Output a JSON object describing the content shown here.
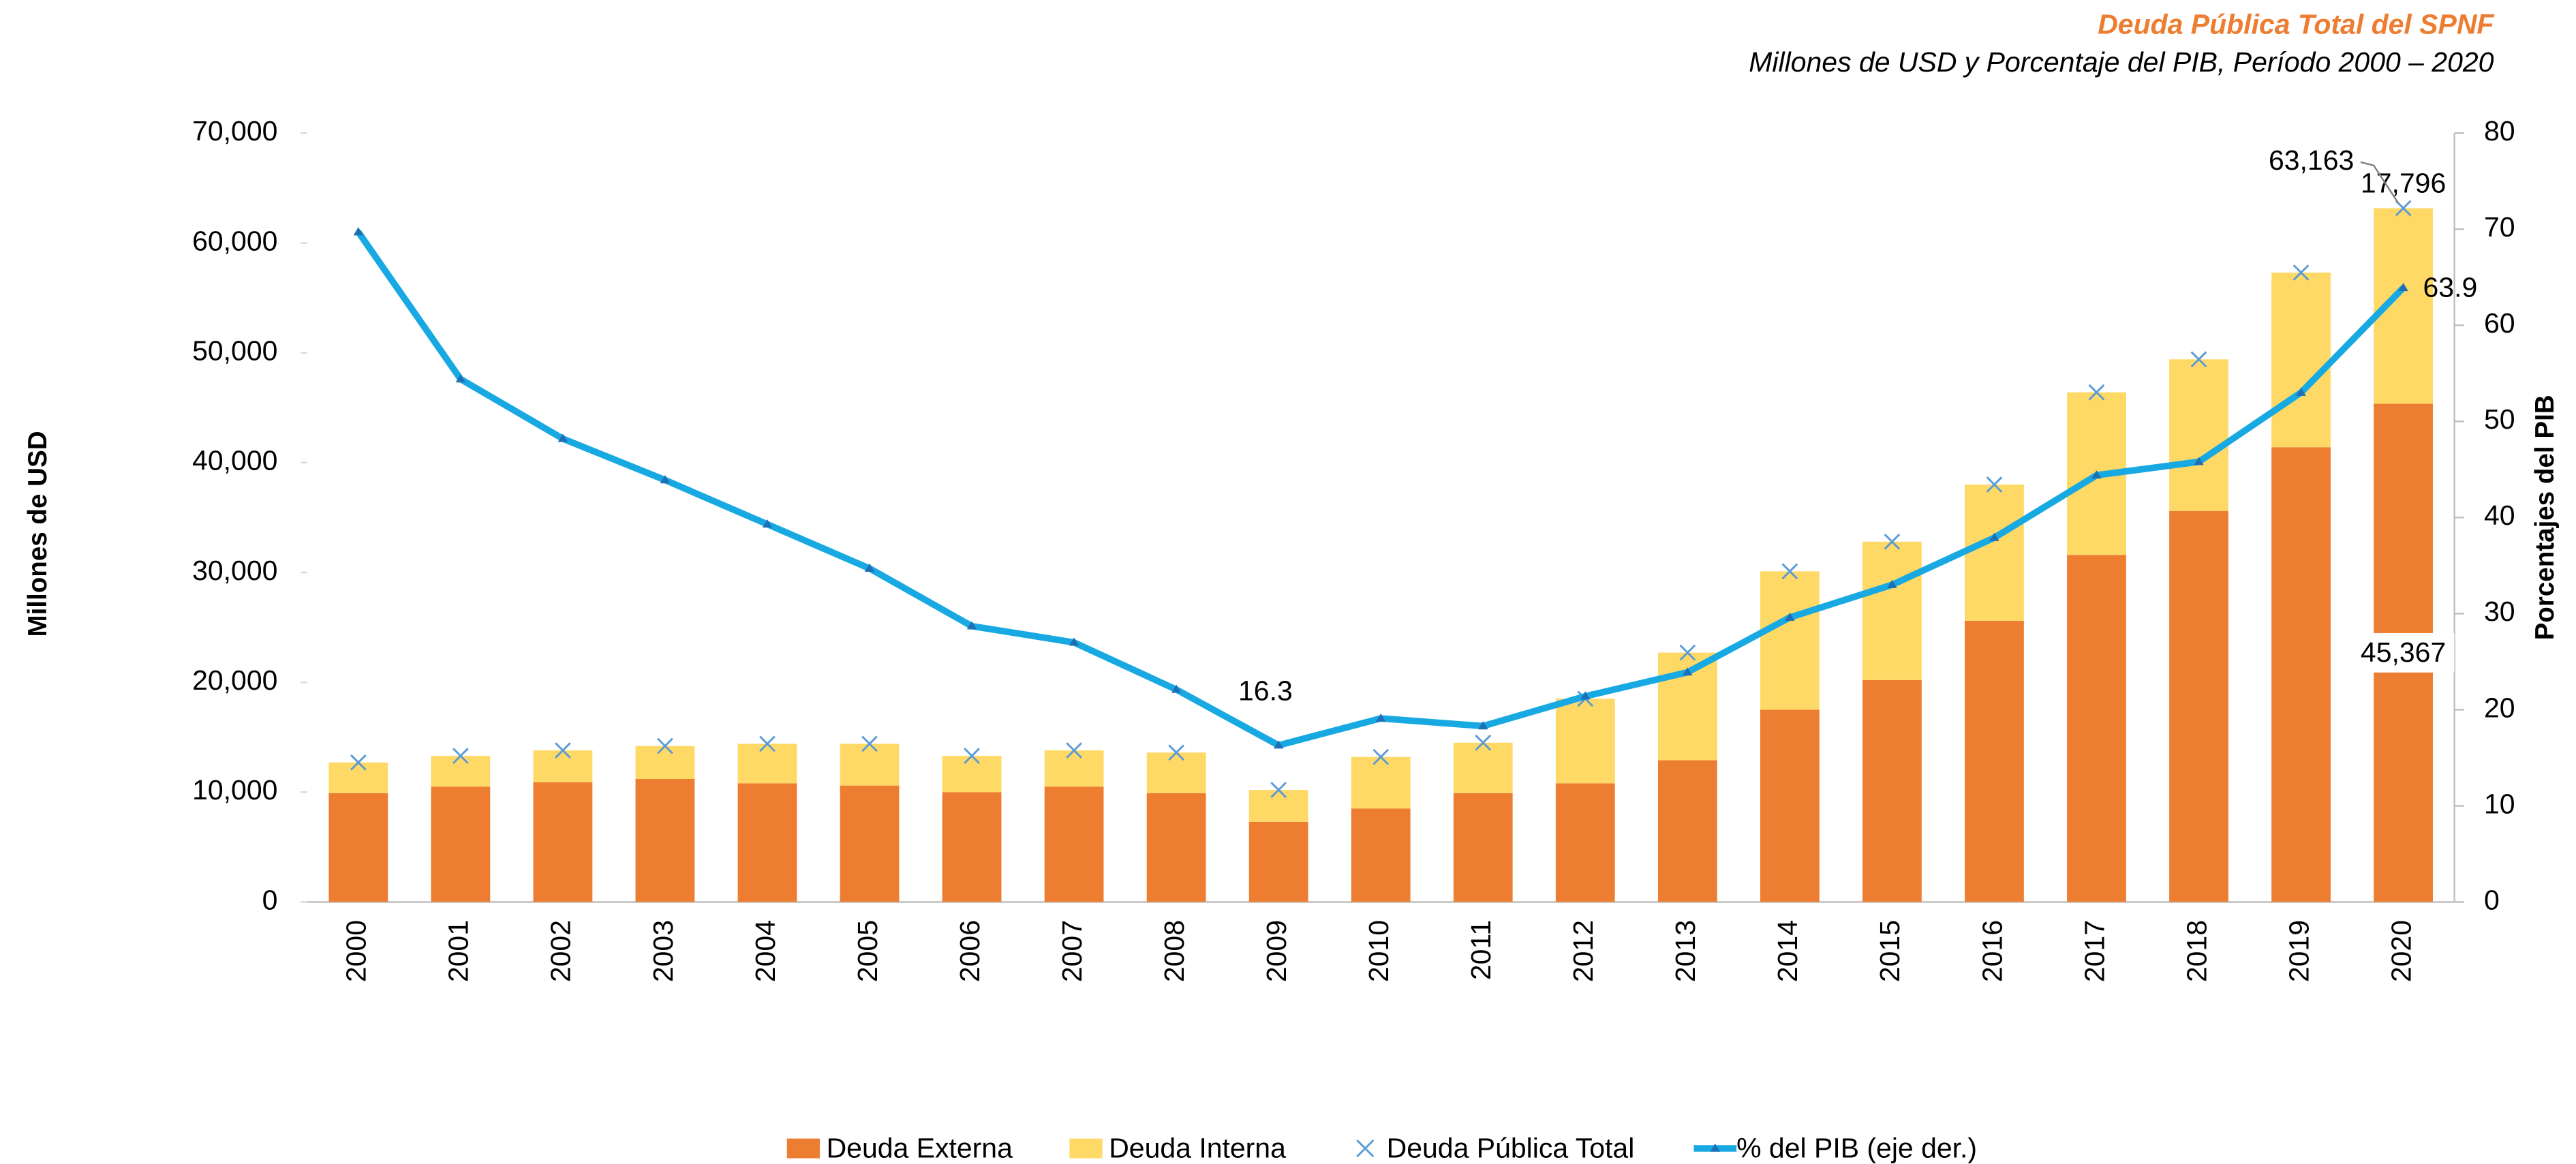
{
  "chart_data": {
    "type": "bar",
    "stacked": true,
    "title": "Deuda Pública Total del SPNF",
    "subtitle": "Millones de USD y Porcentaje del PIB, Período 2000 – 2020",
    "y_label": "Millones de USD",
    "y2_label": "Porcentajes del PIB",
    "categories": [
      "2000",
      "2001",
      "2002",
      "2003",
      "2004",
      "2005",
      "2006",
      "2007",
      "2008",
      "2009",
      "2010",
      "2011",
      "2012",
      "2013",
      "2014",
      "2015",
      "2016",
      "2017",
      "2018",
      "2019",
      "2020"
    ],
    "series": [
      {
        "name": "Deuda Externa",
        "type": "bar",
        "color": "#ed7d31",
        "values": [
          9900,
          10500,
          10900,
          11200,
          10800,
          10600,
          10000,
          10500,
          9900,
          7300,
          8500,
          9900,
          10800,
          12900,
          17500,
          20200,
          25600,
          31600,
          35600,
          41400,
          45367
        ],
        "value_labels": [
          null,
          null,
          null,
          null,
          null,
          null,
          null,
          null,
          null,
          null,
          null,
          null,
          null,
          null,
          null,
          null,
          null,
          null,
          null,
          null,
          "45,367"
        ]
      },
      {
        "name": "Deuda Interna",
        "type": "bar",
        "color": "#ffd966",
        "values": [
          2800,
          2800,
          2900,
          3000,
          3600,
          3800,
          3300,
          3300,
          3700,
          2900,
          4700,
          4600,
          7700,
          9800,
          12600,
          12600,
          12400,
          14800,
          13800,
          15900,
          17796
        ],
        "value_labels": [
          null,
          null,
          null,
          null,
          null,
          null,
          null,
          null,
          null,
          null,
          null,
          null,
          null,
          null,
          null,
          null,
          null,
          null,
          null,
          null,
          "17,796"
        ]
      },
      {
        "name": "Deuda Pública Total",
        "type": "scatter",
        "color": "#5b9bd5",
        "values": [
          12700,
          13300,
          13800,
          14200,
          14400,
          14400,
          13300,
          13800,
          13600,
          10200,
          13200,
          14500,
          18500,
          22700,
          30100,
          32800,
          38000,
          46400,
          49400,
          57300,
          63163
        ],
        "value_labels": [
          null,
          null,
          null,
          null,
          null,
          null,
          null,
          null,
          null,
          null,
          null,
          null,
          null,
          null,
          null,
          null,
          null,
          null,
          null,
          null,
          "63,163"
        ]
      },
      {
        "name": "% del PIB (eje der.)",
        "type": "line",
        "axis": "y2",
        "color": "#18a9e3",
        "values": [
          69.7,
          54.4,
          48.2,
          43.9,
          39.3,
          34.7,
          28.7,
          27.0,
          22.1,
          16.3,
          19.1,
          18.3,
          21.4,
          23.9,
          29.6,
          33.0,
          37.9,
          44.4,
          45.8,
          53.0,
          63.9
        ],
        "value_labels": [
          null,
          null,
          null,
          null,
          null,
          null,
          null,
          null,
          null,
          "16.3",
          null,
          null,
          null,
          null,
          null,
          null,
          null,
          null,
          null,
          null,
          "63.9"
        ]
      }
    ],
    "ylim": [
      0,
      70000
    ],
    "yticks": [
      0,
      {
        "value": 10000,
        "label": "10,000"
      },
      {
        "value": 20000,
        "label": "20,000"
      },
      {
        "value": 30000,
        "label": "30,000"
      },
      {
        "value": 40000,
        "label": "40,000"
      },
      {
        "value": 50000,
        "label": "50,000"
      },
      {
        "value": 60000,
        "label": "60,000"
      },
      {
        "value": 70000,
        "label": "70,000"
      }
    ],
    "y2lim": [
      0,
      80
    ],
    "y2ticks": [
      0,
      10,
      20,
      30,
      40,
      50,
      60,
      70,
      80
    ],
    "grid": false,
    "legend": "bottom"
  }
}
